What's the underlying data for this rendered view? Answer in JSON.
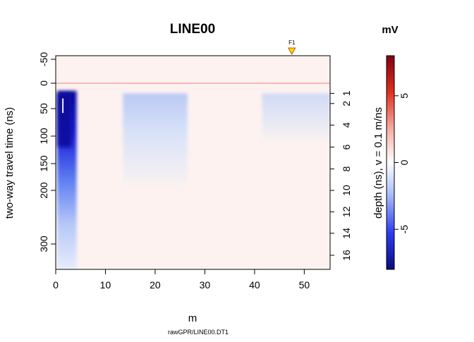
{
  "chart_data": {
    "type": "heatmap",
    "title": "LINE00",
    "xlabel": "m",
    "ylabel": "two-way travel time (ns)",
    "right_axis_label": "depth (ns),  v = 0.1 m/ns",
    "source_caption": "rawGPR/LINE00.DT1",
    "colorbar_title": "mV",
    "xlim": [
      0,
      55.2
    ],
    "ylim": [
      -55,
      345
    ],
    "x_ticks": [
      0,
      10,
      20,
      30,
      40,
      50
    ],
    "y_ticks": [
      -50,
      0,
      50,
      100,
      150,
      200,
      300
    ],
    "y_tick_labels": [
      "-50",
      "0",
      "50",
      "100",
      "150",
      "200",
      "300"
    ],
    "depth_ticks": [
      {
        "label": "1",
        "time": 20
      },
      {
        "label": "2",
        "time": 40
      },
      {
        "label": "4",
        "time": 80
      },
      {
        "label": "6",
        "time": 120
      },
      {
        "label": "8",
        "time": 160
      },
      {
        "label": "10",
        "time": 200
      },
      {
        "label": "12",
        "time": 240
      },
      {
        "label": "14",
        "time": 280
      },
      {
        "label": "16",
        "time": 320
      }
    ],
    "colorbar_range": [
      -8,
      8
    ],
    "colorbar_ticks": [
      -5,
      0,
      5
    ],
    "colormap": [
      "#0b0b80",
      "#2d3cf0",
      "#a8bef8",
      "#ffffff",
      "#f8b0a8",
      "#e0301e",
      "#800012"
    ],
    "fiducial": {
      "label": "F1",
      "x": 47.5,
      "color": "#ffd700"
    },
    "first_break_line_time": 0,
    "first_break_line_color": "#f08080",
    "regions": [
      {
        "name": "strong negative reflector",
        "x": [
          0.3,
          4.2
        ],
        "t": [
          15,
          345
        ],
        "value": -7
      },
      {
        "name": "weak negative zone",
        "x": [
          13.5,
          26.5
        ],
        "t": [
          20,
          190
        ],
        "value": -1.8
      },
      {
        "name": "weak negative zone",
        "x": [
          41.5,
          55.2
        ],
        "t": [
          20,
          110
        ],
        "value": -1.2
      }
    ]
  }
}
